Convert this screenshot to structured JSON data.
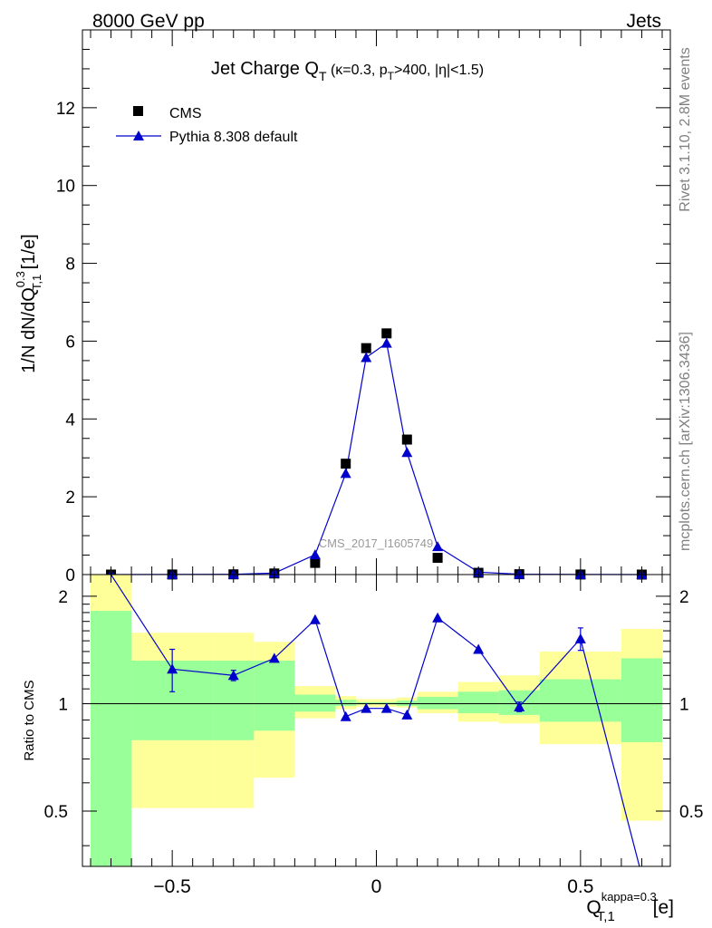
{
  "header": {
    "energy_label": "8000 GeV pp",
    "process_label": "Jets"
  },
  "side_labels": {
    "rivet": "Rivet 3.1.10,  2.8M events",
    "mcplots": "mcplots.cern.ch [arXiv:1306.3436]"
  },
  "watermark": "CMS_2017_I1605749",
  "chart_data": [
    {
      "type": "scatter",
      "panel": "main",
      "title": {
        "main": "Jet Charge Q",
        "main_sub": "T",
        "detail_open": " (κ=0.3, p",
        "detail_sub": "T",
        "detail_close": ">400, |η|<1.5)"
      },
      "ylabel": {
        "prefix": "1/N dN/dQ",
        "sup": "0.3",
        "sub": "T,1",
        "suffix": " [1/e]"
      },
      "xlim": [
        -0.72,
        0.72
      ],
      "ylim": [
        0,
        14
      ],
      "yticks": [
        0,
        2,
        4,
        6,
        8,
        10,
        12
      ],
      "legend": {
        "position": "top-left"
      },
      "series": [
        {
          "name": "CMS",
          "marker": "square",
          "color": "#000000",
          "x": [
            -0.65,
            -0.5,
            -0.35,
            -0.25,
            -0.15,
            -0.075,
            -0.025,
            0.025,
            0.075,
            0.15,
            0.25,
            0.35,
            0.5,
            0.65
          ],
          "y": [
            0.0,
            0.002,
            0.006,
            0.028,
            0.3,
            2.85,
            5.82,
            6.2,
            3.47,
            0.43,
            0.045,
            0.009,
            0.002,
            0.0
          ]
        },
        {
          "name": "Pythia 8.308 default",
          "marker": "triangle",
          "color": "#0000cc",
          "x": [
            -0.65,
            -0.5,
            -0.35,
            -0.25,
            -0.15,
            -0.075,
            -0.025,
            0.025,
            0.075,
            0.15,
            0.25,
            0.35,
            0.5,
            0.65
          ],
          "y": [
            0.0,
            0.002,
            0.007,
            0.037,
            0.51,
            2.6,
            5.58,
            5.95,
            3.14,
            0.72,
            0.062,
            0.009,
            0.003,
            0.0
          ]
        }
      ]
    },
    {
      "type": "line",
      "panel": "ratio",
      "ylabel": "Ratio to CMS",
      "xlabel": {
        "main": "Q",
        "sup": "kappa=0.3",
        "sub": "T,1",
        "suffix": " [e]"
      },
      "xlim": [
        -0.72,
        0.72
      ],
      "ylim": [
        0.35,
        2.3
      ],
      "ylog": true,
      "yticks": [
        0.5,
        1,
        2
      ],
      "xticks": [
        -0.5,
        0,
        0.5
      ],
      "xtick_labels": [
        "−0.5",
        "0",
        "0.5"
      ],
      "reference_line": 1,
      "bands": {
        "edges": [
          -0.7,
          -0.6,
          -0.4,
          -0.3,
          -0.2,
          -0.1,
          -0.05,
          0,
          0.05,
          0.1,
          0.2,
          0.3,
          0.4,
          0.6,
          0.7
        ],
        "stat_lo": [
          0.35,
          0.79,
          0.79,
          0.84,
          0.95,
          0.985,
          0.995,
          0.995,
          0.985,
          0.965,
          0.94,
          0.93,
          0.89,
          0.78
        ],
        "stat_hi": [
          1.82,
          1.32,
          1.32,
          1.32,
          1.06,
          1.025,
          1.01,
          1.01,
          1.02,
          1.045,
          1.08,
          1.09,
          1.17,
          1.34
        ],
        "total_lo": [
          0.35,
          0.51,
          0.51,
          0.62,
          0.91,
          0.965,
          0.98,
          0.98,
          0.975,
          0.94,
          0.89,
          0.88,
          0.77,
          0.47
        ],
        "total_hi": [
          2.3,
          1.58,
          1.58,
          1.49,
          1.12,
          1.05,
          1.03,
          1.03,
          1.04,
          1.08,
          1.15,
          1.2,
          1.4,
          1.62
        ],
        "stat_color": "#99ff99",
        "total_color": "#ffff99"
      },
      "series": [
        {
          "name": "Pythia 8.308 default",
          "marker": "triangle",
          "color": "#0000cc",
          "x": [
            -0.65,
            -0.5,
            -0.35,
            -0.25,
            -0.15,
            -0.075,
            -0.025,
            0.025,
            0.075,
            0.15,
            0.25,
            0.35,
            0.5,
            0.65
          ],
          "y": [
            2.3,
            1.25,
            1.2,
            1.34,
            1.72,
            0.92,
            0.97,
            0.97,
            0.93,
            1.74,
            1.42,
            0.98,
            1.52,
            0.33
          ],
          "err_lo": [
            0,
            0.17,
            0.04,
            0,
            0,
            0,
            0,
            0,
            0,
            0,
            0,
            0.03,
            0.11,
            0
          ],
          "err_hi": [
            0,
            0.17,
            0.04,
            0,
            0,
            0,
            0,
            0,
            0,
            0,
            0,
            0.03,
            0.11,
            0
          ]
        }
      ]
    }
  ]
}
